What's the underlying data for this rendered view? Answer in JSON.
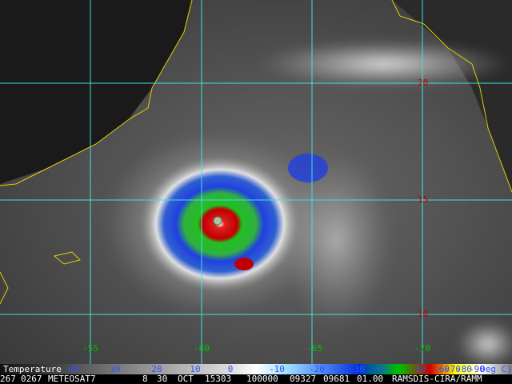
{
  "grid": {
    "latitudes": [
      "20",
      "15",
      "10"
    ],
    "longitudes": [
      "-55",
      "-60",
      "-65",
      "-70"
    ]
  },
  "colorbar": {
    "title": "Temperature",
    "labels": [
      "40",
      "30",
      "20",
      "10",
      "0",
      "-10",
      "-20",
      "-30",
      "-40",
      "-50",
      "-60",
      "-70",
      "-80",
      "-90",
      "Deg C)"
    ]
  },
  "footer": {
    "fields": [
      "267",
      "0267",
      "METEOSAT7",
      "8",
      "30",
      "OCT",
      "15303",
      "100000",
      "09327",
      "09681",
      "01.00",
      "RAMSDIS-CIRA/RAMM"
    ]
  }
}
